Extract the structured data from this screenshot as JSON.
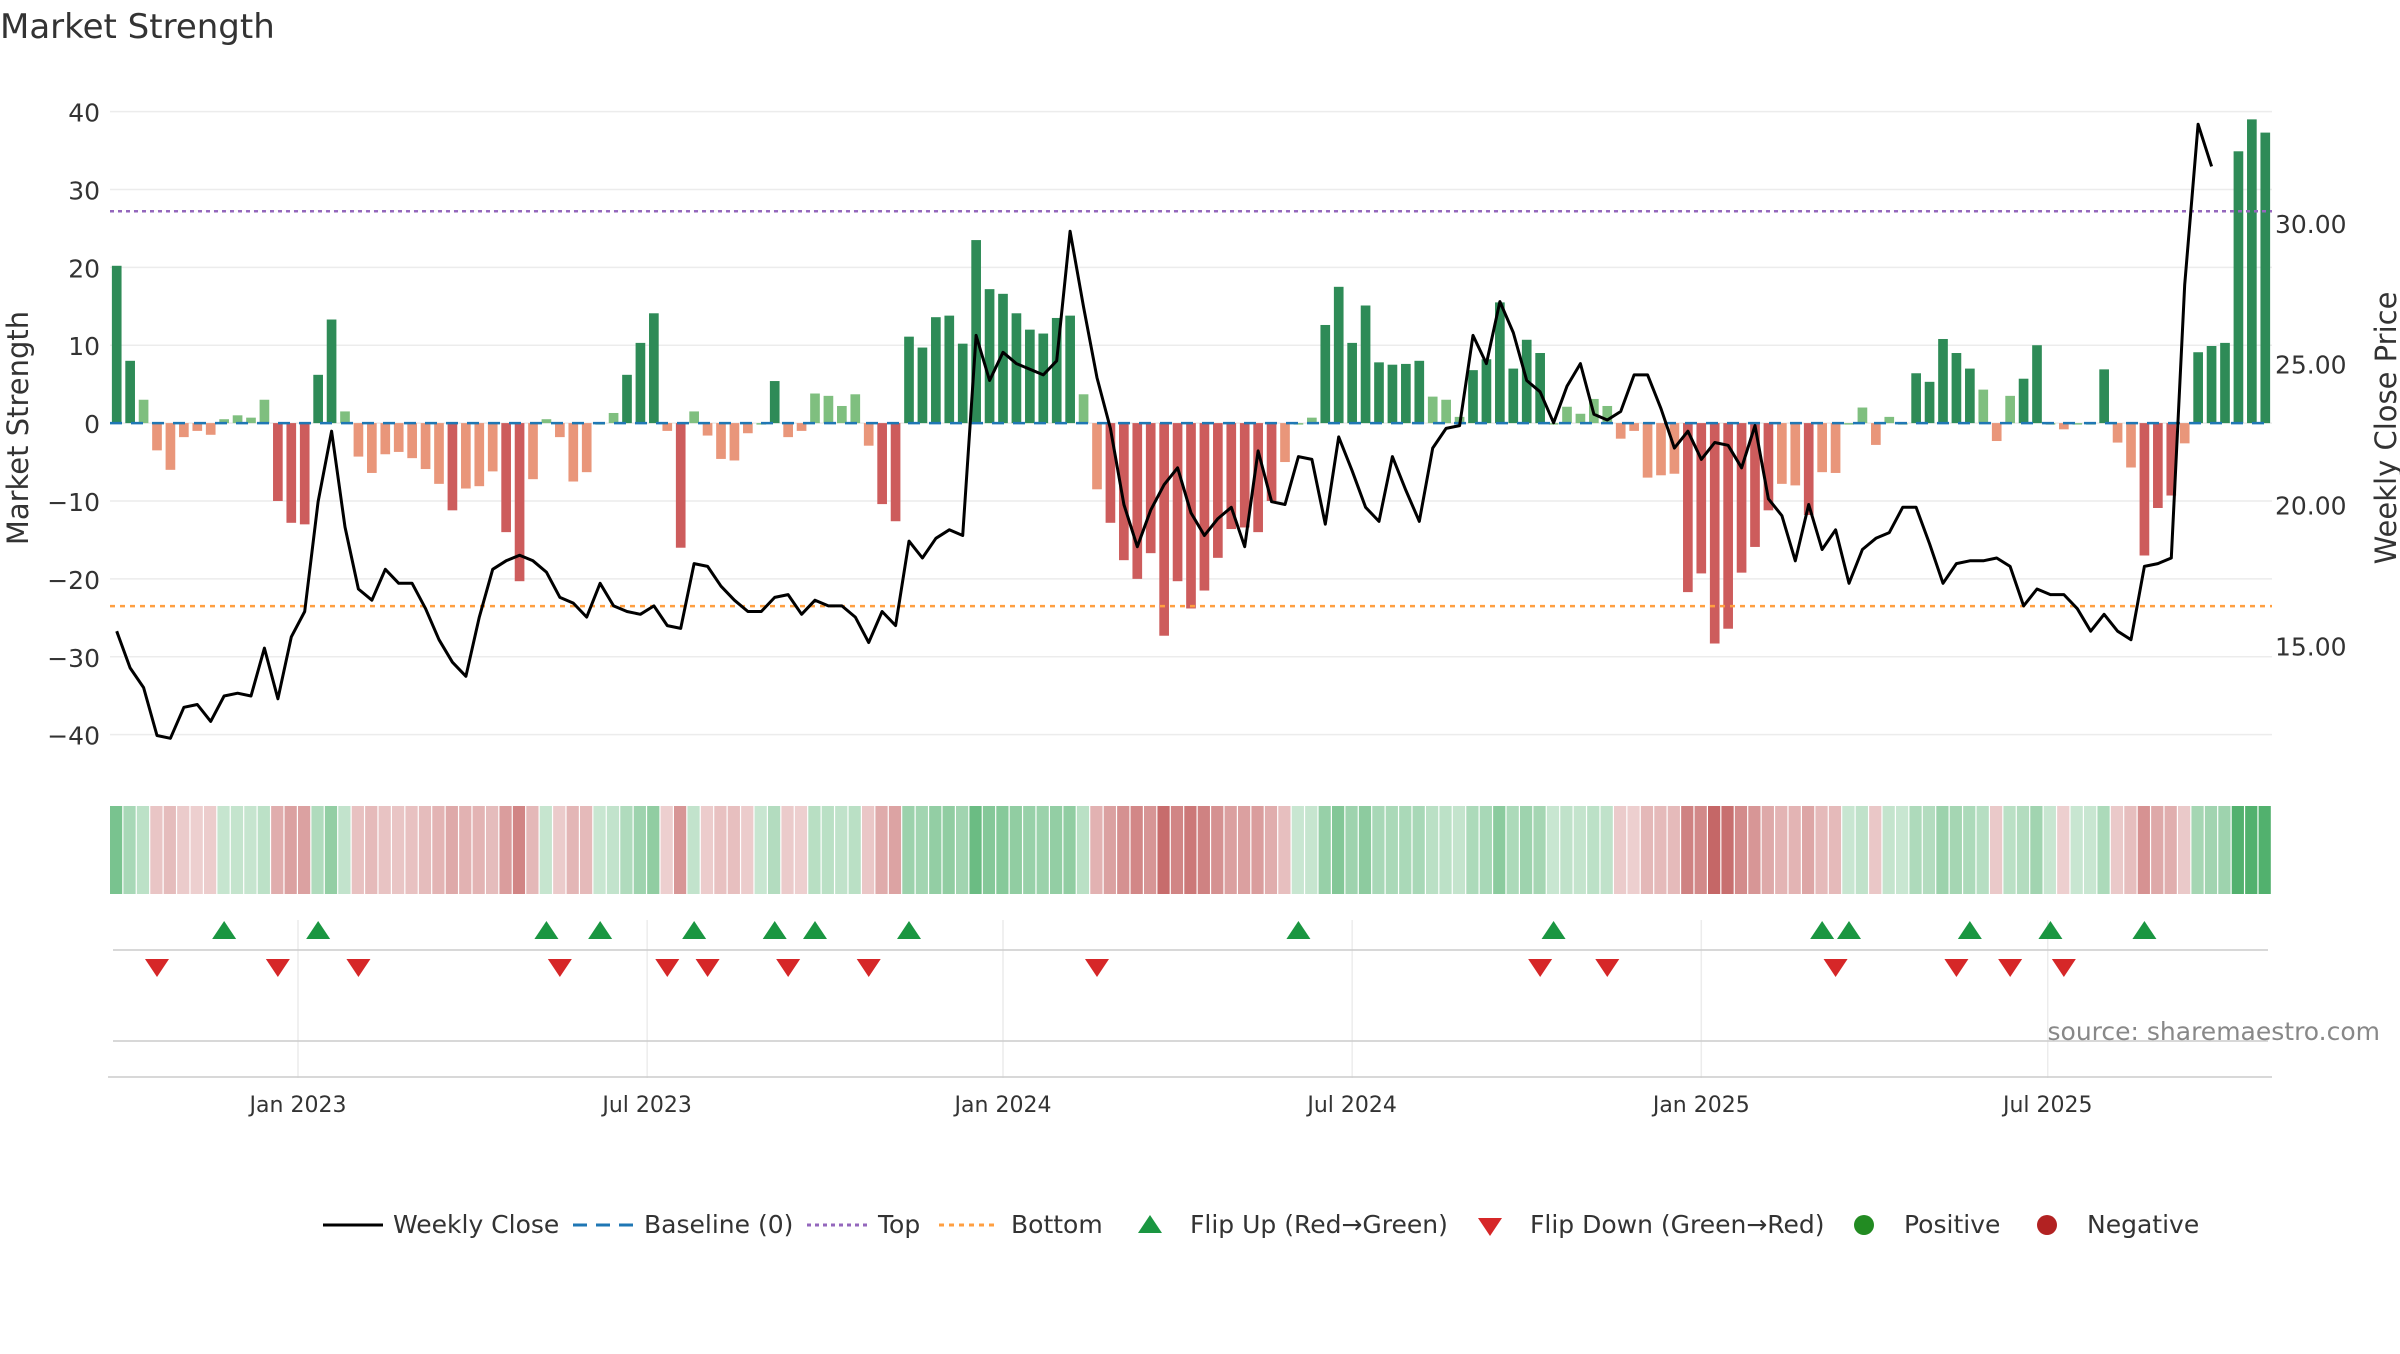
{
  "chart_data": {
    "type": "bar",
    "title": "Market Strength",
    "ylabel": "Market Strength",
    "y2label": "Weekly Close Price",
    "ylim": [
      -43,
      42
    ],
    "y2lim": [
      11.0,
      34.5
    ],
    "y_ticks": [
      40,
      30,
      20,
      10,
      0,
      -10,
      -20,
      -30,
      -40
    ],
    "y_tick_labels": [
      "40",
      "30",
      "20",
      "10",
      "0",
      "−10",
      "−20",
      "−30",
      "−40"
    ],
    "y2_ticks": [
      30,
      25,
      20,
      15
    ],
    "y2_tick_labels": [
      "30.00",
      "25.00",
      "20.00",
      "15.00"
    ],
    "x_tick_labels": [
      "Jan 2023",
      "Jul 2023",
      "Jan 2024",
      "Jul 2024",
      "Jan 2025",
      "Jul 2025"
    ],
    "x_tick_weeks": [
      14,
      40,
      66.5,
      92.5,
      118.5,
      144.3
    ],
    "top_line": 27.2,
    "bottom_line": -23.5,
    "grid": true,
    "legend_position": "bottom-center",
    "source_text": "source: sharemaestro.com",
    "colors": {
      "strong_positive": "#2e8b57",
      "positive": "#7fbf7f",
      "strong_negative": "#cd5c5c",
      "negative": "#e9967a",
      "close_line": "#000000",
      "baseline": "#1f77b4",
      "top": "#9467bd",
      "bottom": "#ff9f40",
      "flip_up": "#1a9641",
      "flip_down": "#d62728",
      "positive_dot": "#228b22",
      "negative_dot": "#b22222"
    },
    "strength": [
      20.2,
      8,
      3,
      -3.5,
      -6,
      -1.8,
      -1,
      -1.5,
      0.5,
      1,
      0.7,
      3,
      -10,
      -12.8,
      -13,
      6.2,
      13.3,
      1.5,
      -4.3,
      -6.4,
      -4,
      -3.7,
      -4.5,
      -5.9,
      -7.8,
      -11.2,
      -8.4,
      -8.1,
      -6.2,
      -14,
      -20.3,
      -7.2,
      0.5,
      -1.8,
      -7.5,
      -6.3,
      0,
      1.3,
      6.2,
      10.3,
      14.1,
      -1,
      -16,
      1.5,
      -1.6,
      -4.6,
      -4.8,
      -1.3,
      0,
      5.4,
      -1.8,
      -1,
      3.8,
      3.5,
      2.2,
      3.7,
      -2.9,
      -10.4,
      -12.6,
      11.1,
      9.7,
      13.6,
      13.8,
      10.2,
      23.5,
      17.2,
      16.6,
      14.1,
      12,
      11.5,
      13.5,
      13.8,
      3.7,
      -8.5,
      -12.8,
      -17.6,
      -20,
      -16.7,
      -27.3,
      -20.3,
      -23.8,
      -21.5,
      -17.3,
      -13.6,
      -13.4,
      -14,
      -10,
      -5,
      0,
      0.7,
      12.6,
      17.5,
      10.3,
      15.1,
      7.8,
      7.5,
      7.6,
      8,
      3.4,
      3,
      0.8,
      6.8,
      8.2,
      15.5,
      7,
      10.7,
      9,
      0,
      2.1,
      1.2,
      3.1,
      2.2,
      -2,
      -1,
      -7,
      -6.7,
      -6.5,
      -21.7,
      -19.3,
      -28.3,
      -26.4,
      -19.2,
      -15.9,
      -11.2,
      -7.8,
      -8,
      -11.8,
      -6.3,
      -6.4,
      0,
      2,
      -2.8,
      0.8,
      0,
      6.4,
      5.3,
      10.8,
      9,
      7,
      4.3,
      -2.3,
      3.5,
      5.7,
      10,
      0,
      -0.8,
      0,
      0,
      6.9,
      -2.5,
      -5.7,
      -17,
      -10.9,
      -9.3,
      -2.6,
      9.1,
      9.9,
      10.3,
      34.9,
      39,
      37.3
    ],
    "close": [
      15.5,
      14.2,
      13.5,
      11.8,
      11.7,
      12.8,
      12.9,
      12.3,
      13.2,
      13.3,
      13.2,
      14.9,
      13.1,
      15.3,
      16.2,
      20.1,
      22.6,
      19.2,
      17.0,
      16.6,
      17.7,
      17.2,
      17.2,
      16.3,
      15.2,
      14.4,
      13.9,
      16.0,
      17.7,
      18.0,
      18.2,
      18.0,
      17.6,
      16.7,
      16.5,
      16.0,
      17.2,
      16.4,
      16.2,
      16.1,
      16.4,
      15.7,
      15.6,
      17.9,
      17.8,
      17.1,
      16.6,
      16.2,
      16.2,
      16.7,
      16.8,
      16.1,
      16.6,
      16.4,
      16.4,
      16.0,
      15.1,
      16.2,
      15.7,
      18.7,
      18.1,
      18.8,
      19.1,
      18.9,
      26.0,
      24.4,
      25.4,
      25.0,
      24.8,
      24.6,
      25.1,
      29.7,
      27.0,
      24.5,
      22.7,
      20.0,
      18.5,
      19.8,
      20.7,
      21.3,
      19.7,
      18.9,
      19.5,
      19.9,
      18.5,
      21.9,
      20.1,
      20.0,
      21.7,
      21.6,
      19.3,
      22.4,
      21.2,
      19.9,
      19.4,
      21.7,
      20.5,
      19.4,
      22.0,
      22.7,
      22.8,
      26.0,
      25.0,
      27.2,
      26.1,
      24.4,
      24.0,
      22.9,
      24.2,
      25.0,
      23.2,
      23.0,
      23.3,
      24.6,
      24.6,
      23.4,
      22.0,
      22.6,
      21.6,
      22.2,
      22.1,
      21.3,
      22.8,
      20.2,
      19.6,
      18.0,
      20.0,
      18.4,
      19.1,
      17.2,
      18.4,
      18.8,
      19.0,
      19.9,
      19.9,
      18.6,
      17.2,
      17.9,
      18.0,
      18.0,
      18.1,
      17.8,
      16.4,
      17.0,
      16.8,
      16.8,
      16.3,
      15.5,
      16.1,
      15.5,
      15.2,
      17.8,
      17.9,
      18.1,
      27.8,
      33.5,
      32.0
    ],
    "flip_up_weeks": [
      8,
      15,
      32,
      36,
      43,
      49,
      52,
      59,
      88,
      107,
      127,
      129,
      138,
      144,
      151
    ],
    "flip_down_weeks": [
      3,
      12,
      18,
      33,
      41,
      44,
      50,
      56,
      73,
      106,
      111,
      128,
      137,
      141,
      145
    ],
    "legend": [
      "Weekly Close",
      "Baseline (0)",
      "Top",
      "Bottom",
      "Flip Up (Red→Green)",
      "Flip Down (Green→Red)",
      "Positive",
      "Negative"
    ]
  }
}
